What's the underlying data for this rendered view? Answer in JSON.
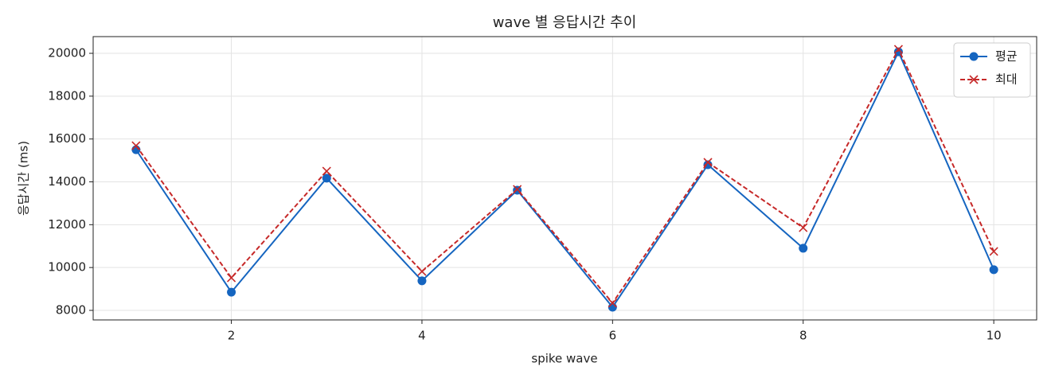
{
  "chart_data": {
    "type": "line",
    "title": "wave 별 응답시간 추이",
    "x_label": "spike wave",
    "y_label": "응답시간 (ms)",
    "x": [
      1,
      2,
      3,
      4,
      5,
      6,
      7,
      8,
      9,
      10
    ],
    "series": [
      {
        "name": "평균",
        "color": "#1565c0",
        "marker": "o",
        "linestyle": "solid",
        "values": [
          15500,
          8850,
          14170,
          9380,
          13610,
          8150,
          14800,
          10900,
          20070,
          9900
        ]
      },
      {
        "name": "최대",
        "color": "#c62828",
        "marker": "x",
        "linestyle": "dashed",
        "values": [
          15690,
          9520,
          14500,
          9820,
          13650,
          8340,
          14910,
          11860,
          20190,
          10750
        ]
      }
    ],
    "xlim": [
      0.55,
      10.45
    ],
    "xticks": [
      2,
      4,
      6,
      8,
      10
    ],
    "ylim": [
      7554,
      20780
    ],
    "yticks": [
      8000,
      10000,
      12000,
      14000,
      16000,
      18000,
      20000
    ],
    "grid": true,
    "legend": "upper right"
  }
}
